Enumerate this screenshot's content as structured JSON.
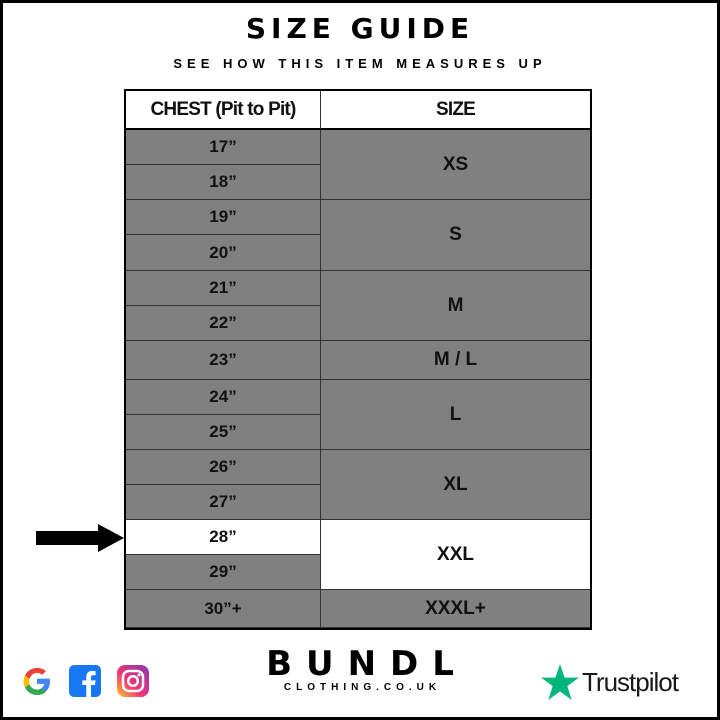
{
  "title": "SIZE GUIDE",
  "subtitle": "SEE HOW THIS ITEM MEASURES UP",
  "table": {
    "headers": [
      "CHEST (Pit to Pit)",
      "SIZE"
    ],
    "chest": [
      "17”",
      "18”",
      "19”",
      "20”",
      "21”",
      "22”",
      "23”",
      "24”",
      "25”",
      "26”",
      "27”",
      "28”",
      "29”",
      "30”+"
    ],
    "sizes": [
      {
        "label": "XS",
        "rows": [
          0,
          1
        ]
      },
      {
        "label": "S",
        "rows": [
          2,
          3
        ]
      },
      {
        "label": "M",
        "rows": [
          4,
          5
        ]
      },
      {
        "label": "M / L",
        "rows": [
          6,
          6
        ]
      },
      {
        "label": "L",
        "rows": [
          7,
          8
        ]
      },
      {
        "label": "XL",
        "rows": [
          9,
          10
        ]
      },
      {
        "label": "XXL",
        "rows": [
          11,
          12
        ]
      },
      {
        "label": "XXXL+",
        "rows": [
          13,
          13
        ]
      }
    ],
    "highlighted_chest": "28”",
    "highlighted_size": "XXL"
  },
  "colors": {
    "cell": "#808080",
    "highlight": "#ffffff",
    "trustpilot": "#00b67a",
    "facebook": "#1877f2"
  },
  "footer": {
    "social_icons": [
      "google-icon",
      "facebook-icon",
      "instagram-icon"
    ],
    "brand": "BUNDL",
    "brand_sub": "CLOTHING.CO.UK",
    "trustpilot": "Trustpilot"
  }
}
